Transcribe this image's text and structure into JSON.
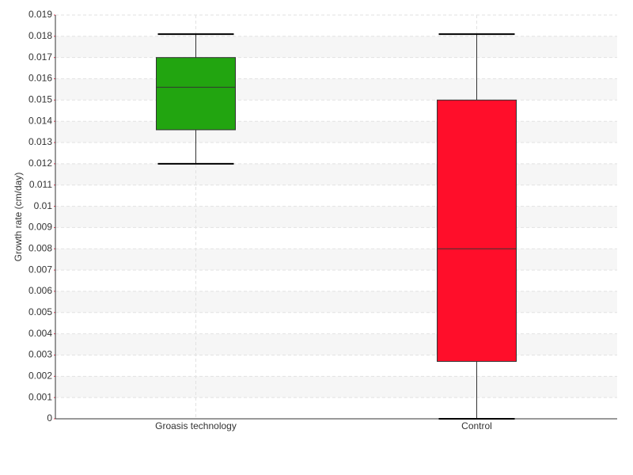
{
  "chart_data": {
    "type": "box",
    "y_label": "Growth rate (cm/day)",
    "categories": [
      "Groasis technology",
      "Control"
    ],
    "boxes": [
      {
        "min": 0.012,
        "q1": 0.0136,
        "median": 0.0156,
        "q3": 0.017,
        "max": 0.0181,
        "color": "#22a510"
      },
      {
        "min": 0,
        "q1": 0.0027,
        "median": 0.008,
        "q3": 0.015,
        "max": 0.0181,
        "color": "#ff0e2a"
      }
    ],
    "ylim": [
      0,
      0.019
    ],
    "yticks": [
      0,
      0.001,
      0.002,
      0.003,
      0.004,
      0.005,
      0.006,
      0.007,
      0.008,
      0.009,
      0.01,
      0.011,
      0.012,
      0.013,
      0.014,
      0.015,
      0.016,
      0.017,
      0.018,
      0.019
    ],
    "grid": true
  }
}
